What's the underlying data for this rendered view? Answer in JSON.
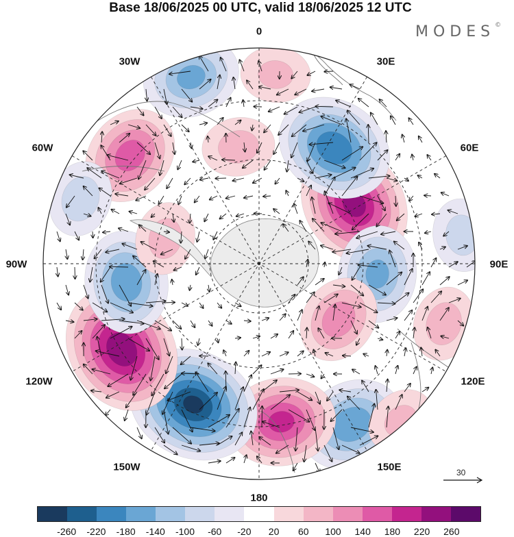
{
  "title": "Base 18/06/2025 00 UTC, valid 18/06/2025 12 UTC",
  "brand": {
    "name": "MODES",
    "mark": "©"
  },
  "longitude_labels": {
    "lon_0": "0",
    "lon_30e": "30E",
    "lon_60e": "60E",
    "lon_90e": "90E",
    "lon_120e": "120E",
    "lon_150e": "150E",
    "lon_180": "180",
    "lon_150w": "150W",
    "lon_120w": "120W",
    "lon_90w": "90W",
    "lon_60w": "60W",
    "lon_30w": "30W"
  },
  "reference_vector": {
    "label": "30"
  },
  "colorbar": {
    "colors": [
      "#1a3a5e",
      "#1e5f8e",
      "#3b86be",
      "#6aa6d4",
      "#a3c4e4",
      "#ccd7ec",
      "#e8e6f3",
      "#ffffff",
      "#f8d8dc",
      "#f3b6c6",
      "#ec8db5",
      "#df5aa6",
      "#c4258f",
      "#93107d",
      "#5c0a6a"
    ],
    "tick_labels": [
      "-260",
      "-220",
      "-180",
      "-140",
      "-100",
      "-60",
      "-20",
      "20",
      "60",
      "100",
      "140",
      "180",
      "220",
      "260"
    ]
  },
  "anomalies": [
    {
      "lon": 58,
      "colat": 0.52,
      "value": 235
    },
    {
      "lon": 33,
      "colat": 0.64,
      "value": -215
    },
    {
      "lon": 95,
      "colat": 0.55,
      "value": -150
    },
    {
      "lon": 125,
      "colat": 0.45,
      "value": 120
    },
    {
      "lon": 150,
      "colat": 0.86,
      "value": -175
    },
    {
      "lon": 172,
      "colat": 0.74,
      "value": 190
    },
    {
      "lon": -155,
      "colat": 0.72,
      "value": -265
    },
    {
      "lon": -122,
      "colat": 0.75,
      "value": 255
    },
    {
      "lon": -98,
      "colat": 0.62,
      "value": -170
    },
    {
      "lon": -75,
      "colat": 0.45,
      "value": 70
    },
    {
      "lon": -50,
      "colat": 0.78,
      "value": 160
    },
    {
      "lon": -20,
      "colat": 0.92,
      "value": -150
    },
    {
      "lon": 5,
      "colat": 0.88,
      "value": 60
    },
    {
      "lon": 108,
      "colat": 0.9,
      "value": 75
    },
    {
      "lon": 138,
      "colat": 0.98,
      "value": 60
    },
    {
      "lon": -10,
      "colat": 0.55,
      "value": 70
    },
    {
      "lon": -70,
      "colat": 0.88,
      "value": -80
    },
    {
      "lon": 82,
      "colat": 0.95,
      "value": -70
    }
  ]
}
